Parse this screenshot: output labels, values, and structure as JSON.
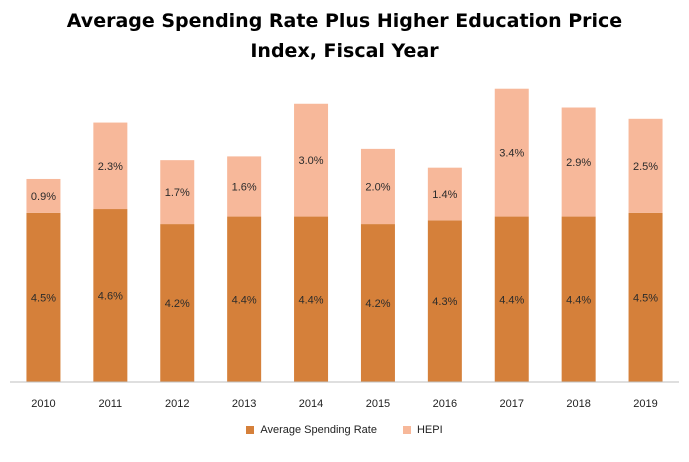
{
  "chart_data": {
    "type": "bar",
    "stacked": true,
    "title": "Average Spending Rate Plus Higher Education Price Index, Fiscal Year",
    "categories": [
      "2010",
      "2011",
      "2012",
      "2013",
      "2014",
      "2015",
      "2016",
      "2017",
      "2018",
      "2019"
    ],
    "series": [
      {
        "name": "Average Spending Rate",
        "color": "#D5803A",
        "values": [
          4.5,
          4.6,
          4.2,
          4.4,
          4.4,
          4.2,
          4.3,
          4.4,
          4.4,
          4.5
        ],
        "labels": [
          "4.5%",
          "4.6%",
          "4.2%",
          "4.4%",
          "4.4%",
          "4.2%",
          "4.3%",
          "4.4%",
          "4.4%",
          "4.5%"
        ]
      },
      {
        "name": "HEPI",
        "color": "#F7B89A",
        "values": [
          0.9,
          2.3,
          1.7,
          1.6,
          3.0,
          2.0,
          1.4,
          3.4,
          2.9,
          2.5
        ],
        "labels": [
          "0.9%",
          "2.3%",
          "1.7%",
          "1.6%",
          "3.0%",
          "2.0%",
          "1.4%",
          "3.4%",
          "2.9%",
          "2.5%"
        ]
      }
    ],
    "ylim": [
      0,
      8
    ],
    "grid": false,
    "legend_position": "bottom"
  }
}
